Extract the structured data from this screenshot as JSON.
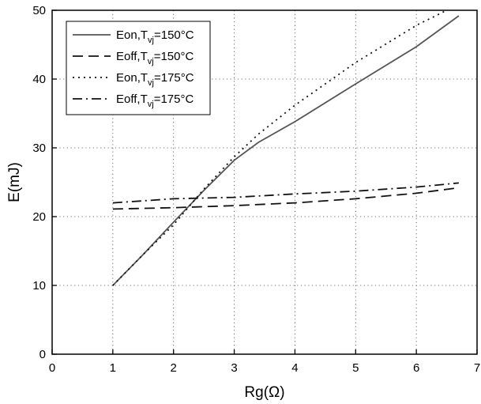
{
  "chart_data": {
    "type": "line",
    "xlabel": "Rg(Ω)",
    "ylabel": "E(mJ)",
    "xlim": [
      0,
      7
    ],
    "ylim": [
      0,
      50
    ],
    "xticks": [
      0,
      1,
      2,
      3,
      4,
      5,
      6,
      7
    ],
    "yticks": [
      0,
      10,
      20,
      30,
      40,
      50
    ],
    "grid": "dotted",
    "legend_position": "top-left",
    "series": [
      {
        "name": "Eon,T",
        "subscript": "vj",
        "suffix": "=150°C",
        "style": "solid",
        "color": "#555555",
        "points": [
          [
            1,
            10
          ],
          [
            1.5,
            14.5
          ],
          [
            2,
            19.2
          ],
          [
            2.5,
            23.8
          ],
          [
            3,
            28.2
          ],
          [
            3.4,
            30.8
          ],
          [
            4,
            33.8
          ],
          [
            5,
            39.3
          ],
          [
            6,
            44.7
          ],
          [
            6.7,
            49.2
          ]
        ]
      },
      {
        "name": "Eoff,T",
        "subscript": "vj",
        "suffix": "=150°C",
        "style": "dashed",
        "color": "#111111",
        "points": [
          [
            1,
            21.1
          ],
          [
            2,
            21.3
          ],
          [
            3,
            21.6
          ],
          [
            4,
            22.0
          ],
          [
            5,
            22.6
          ],
          [
            6,
            23.4
          ],
          [
            6.7,
            24.2
          ]
        ]
      },
      {
        "name": "Eon,T",
        "subscript": "vj",
        "suffix": "=175°C",
        "style": "dotted",
        "color": "#111111",
        "points": [
          [
            1,
            10
          ],
          [
            1.5,
            14.5
          ],
          [
            2,
            18.8
          ],
          [
            2.5,
            24.0
          ],
          [
            3,
            28.7
          ],
          [
            3.4,
            32.0
          ],
          [
            4,
            36.2
          ],
          [
            5,
            42.4
          ],
          [
            6,
            47.8
          ],
          [
            6.5,
            50.0
          ]
        ]
      },
      {
        "name": "Eoff,T",
        "subscript": "vj",
        "suffix": "=175°C",
        "style": "dashdot",
        "color": "#111111",
        "points": [
          [
            1,
            22.0
          ],
          [
            2,
            22.6
          ],
          [
            3,
            22.8
          ],
          [
            4,
            23.3
          ],
          [
            5,
            23.7
          ],
          [
            6,
            24.3
          ],
          [
            6.7,
            24.9
          ]
        ]
      }
    ]
  }
}
